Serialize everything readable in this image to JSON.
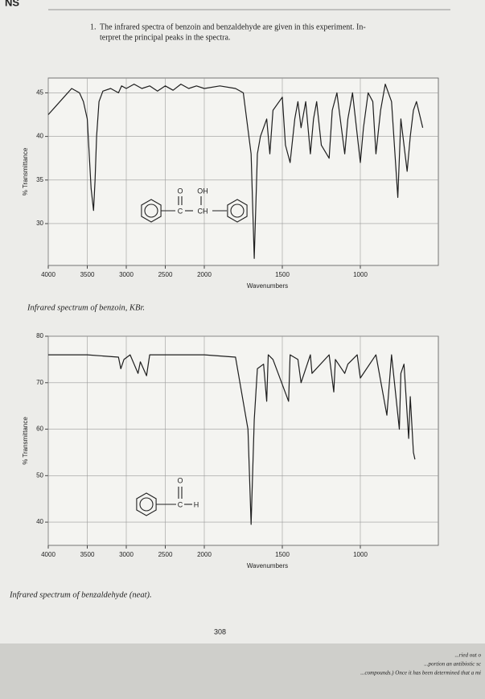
{
  "header": "NS",
  "question": [
    "1.",
    "The infrared spectra of benzoin and benzaldehyde are given in this experiment. In-",
    "terpret the principal peaks in the spectra."
  ],
  "page_number": "308",
  "footer": [
    "...ried out o",
    "...portion an antibiotic sc",
    "...compounds.) Once it has been determined that a mi"
  ],
  "chart_data": [
    {
      "type": "line",
      "xlabel": "Wavenumbers",
      "ylabel": "% Transmittance",
      "caption": "Infrared spectrum of benzoin, KBr.",
      "annotations": [
        "O",
        "OH",
        "C",
        "CH"
      ],
      "xlim": [
        4000,
        500
      ],
      "x_scale_break": 2000,
      "xticks": [
        4000,
        3500,
        3000,
        2500,
        2000,
        1500,
        1000
      ],
      "ylim": [
        25.2,
        46.7
      ],
      "yticks": [
        30,
        35,
        40,
        45
      ],
      "grid": true,
      "color": "#1e1e1e",
      "x": [
        4000,
        3900,
        3800,
        3700,
        3600,
        3550,
        3500,
        3450,
        3420,
        3400,
        3380,
        3350,
        3300,
        3200,
        3100,
        3060,
        3000,
        2900,
        2800,
        2700,
        2600,
        2500,
        2400,
        2300,
        2200,
        2100,
        2000,
        1900,
        1800,
        1750,
        1700,
        1680,
        1660,
        1640,
        1600,
        1580,
        1560,
        1500,
        1480,
        1450,
        1420,
        1400,
        1380,
        1350,
        1320,
        1300,
        1280,
        1250,
        1200,
        1180,
        1150,
        1100,
        1080,
        1050,
        1000,
        980,
        950,
        920,
        900,
        870,
        840,
        800,
        760,
        740,
        700,
        680,
        660,
        640,
        600
      ],
      "values": [
        42.5,
        43.5,
        44.5,
        45.5,
        45,
        44,
        42,
        34,
        31.5,
        35,
        40,
        44,
        45.2,
        45.5,
        45,
        45.8,
        45.5,
        46,
        45.5,
        45.8,
        45.2,
        45.8,
        45.3,
        46,
        45.5,
        45.8,
        45.5,
        45.8,
        45.5,
        45,
        38,
        26,
        38,
        40,
        42,
        38,
        43,
        44.5,
        39,
        37,
        42,
        44,
        41,
        44,
        38,
        42,
        44,
        39,
        37.5,
        43,
        45,
        38,
        42,
        45,
        37,
        41,
        45,
        44,
        38,
        43,
        46,
        44,
        33,
        42,
        36,
        40,
        43,
        44,
        41
      ]
    },
    {
      "type": "line",
      "xlabel": "Wavenumbers",
      "ylabel": "% Transmittance",
      "caption": "Infrared spectrum of benzaldehyde (neat).",
      "annotations": [
        "O",
        "C",
        "H"
      ],
      "xlim": [
        4000,
        500
      ],
      "x_scale_break": 2000,
      "xticks": [
        4000,
        3500,
        3000,
        2500,
        2000,
        1500,
        1000
      ],
      "ylim": [
        35,
        80
      ],
      "yticks": [
        40,
        50,
        60,
        70,
        80
      ],
      "grid": true,
      "color": "#1e1e1e",
      "x": [
        4000,
        3500,
        3100,
        3070,
        3030,
        2950,
        2850,
        2820,
        2740,
        2700,
        2400,
        2000,
        1800,
        1720,
        1700,
        1680,
        1660,
        1620,
        1600,
        1590,
        1560,
        1460,
        1450,
        1400,
        1380,
        1320,
        1310,
        1200,
        1170,
        1160,
        1100,
        1080,
        1020,
        1000,
        900,
        830,
        800,
        750,
        740,
        720,
        690,
        680,
        660,
        650
      ],
      "values": [
        76,
        76,
        75.5,
        73,
        75,
        76,
        72,
        74.5,
        71.5,
        76,
        76,
        76,
        75.5,
        60,
        39.5,
        62,
        73,
        74,
        66,
        76,
        75,
        66,
        76,
        75,
        70,
        76,
        72,
        76,
        68,
        75,
        72,
        74,
        76,
        71,
        76,
        63,
        76,
        60,
        72,
        74,
        58,
        67,
        55,
        53.5
      ]
    }
  ]
}
